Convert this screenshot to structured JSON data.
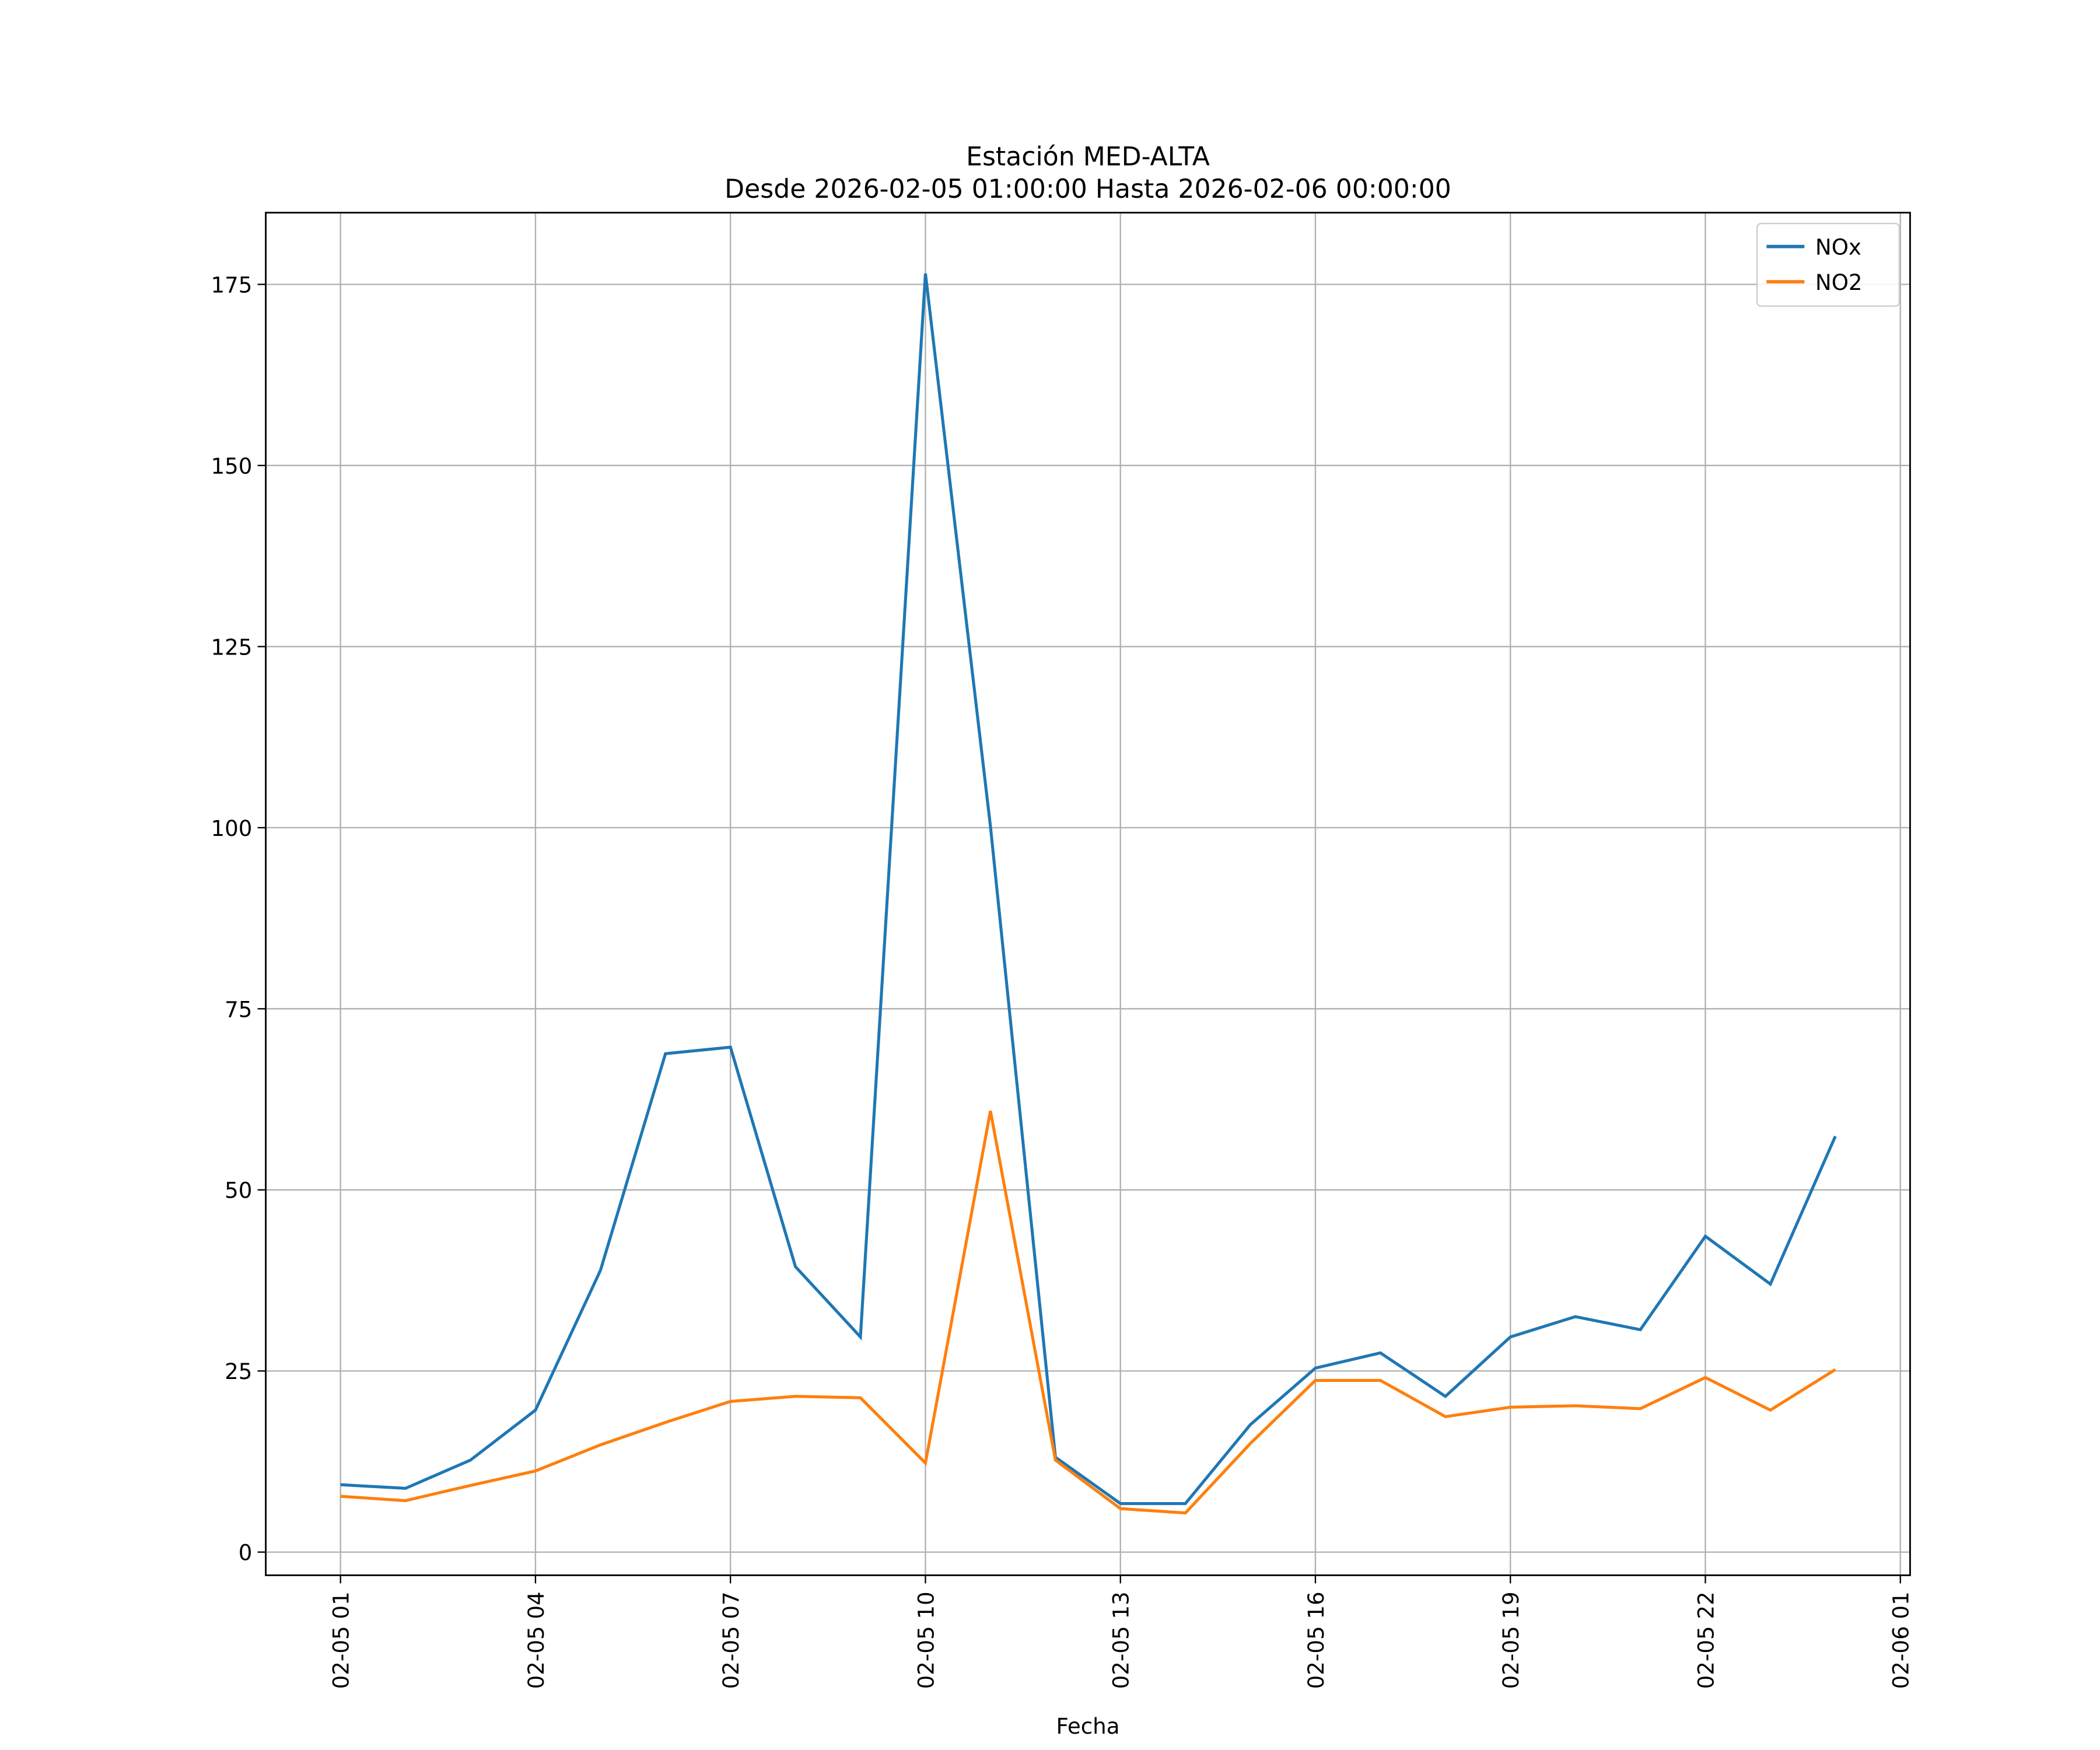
{
  "chart_data": {
    "type": "line",
    "title": "Estación MED-ALTA",
    "subtitle": "Desde 2026-02-05 01:00:00 Hasta 2026-02-06 00:00:00",
    "xlabel": "Fecha",
    "ylabel": "",
    "x": [
      "02-05 01",
      "02-05 02",
      "02-05 03",
      "02-05 04",
      "02-05 05",
      "02-05 06",
      "02-05 07",
      "02-05 08",
      "02-05 09",
      "02-05 10",
      "02-05 11",
      "02-05 12",
      "02-05 13",
      "02-05 14",
      "02-05 15",
      "02-05 16",
      "02-05 17",
      "02-05 18",
      "02-05 19",
      "02-05 20",
      "02-05 21",
      "02-05 22",
      "02-05 23",
      "02-06 00"
    ],
    "xticks": [
      "02-05 01",
      "02-05 04",
      "02-05 07",
      "02-05 10",
      "02-05 13",
      "02-05 16",
      "02-05 19",
      "02-05 22",
      "02-06 01"
    ],
    "yticks": [
      0,
      25,
      50,
      75,
      100,
      125,
      150,
      175
    ],
    "ylim": [
      -3.2,
      184.9
    ],
    "xlim_hours_from_first": [
      -1.15,
      24.15
    ],
    "grid": true,
    "legend_position": "top-right",
    "series": [
      {
        "name": "NOx",
        "color": "#1f77b4",
        "values": [
          9.3,
          8.8,
          12.7,
          19.6,
          38.9,
          68.8,
          69.7,
          39.4,
          29.7,
          176.5,
          100.2,
          13.1,
          6.7,
          6.7,
          17.6,
          25.4,
          27.5,
          21.5,
          29.7,
          32.5,
          30.7,
          43.6,
          37.0,
          57.4
        ]
      },
      {
        "name": "NO2",
        "color": "#ff7f0e",
        "values": [
          7.7,
          7.1,
          9.2,
          11.2,
          14.8,
          17.9,
          20.8,
          21.5,
          21.3,
          12.3,
          60.9,
          12.7,
          6.0,
          5.4,
          15.0,
          23.7,
          23.7,
          18.7,
          20.0,
          20.2,
          19.8,
          24.1,
          19.6,
          25.2
        ]
      }
    ]
  }
}
